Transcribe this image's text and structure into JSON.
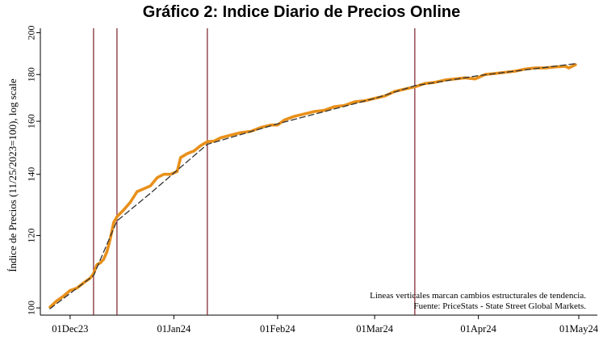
{
  "chart_data": {
    "type": "line",
    "title": "Gráfico 2: Indice Diario de Precios Online",
    "xlabel": "",
    "ylabel": "Índice de Precios (11/25/2023=100), log scale",
    "y_scale": "log",
    "ylim": [
      99,
      201
    ],
    "xlim": [
      "2023-11-25",
      "2024-05-01"
    ],
    "y_ticks": [
      100,
      120,
      140,
      160,
      180,
      200
    ],
    "x_ticks": [
      {
        "date": "2023-12-01",
        "label": "01Dec23"
      },
      {
        "date": "2024-01-01",
        "label": "01Jan24"
      },
      {
        "date": "2024-02-01",
        "label": "01Feb24"
      },
      {
        "date": "2024-03-01",
        "label": "01Mar24"
      },
      {
        "date": "2024-04-01",
        "label": "01Apr24"
      },
      {
        "date": "2024-05-01",
        "label": "01May24"
      }
    ],
    "structural_breaks": [
      "2023-12-08",
      "2023-12-15",
      "2024-01-11",
      "2024-03-13"
    ],
    "series": [
      {
        "style": "solid",
        "color": "#E8901A",
        "points": [
          [
            "2023-11-25",
            100.2
          ],
          [
            "2023-11-27",
            101.8
          ],
          [
            "2023-11-29",
            103.0
          ],
          [
            "2023-12-01",
            104.5
          ],
          [
            "2023-12-03",
            105.1
          ],
          [
            "2023-12-05",
            106.5
          ],
          [
            "2023-12-07",
            107.8
          ],
          [
            "2023-12-08",
            109.0
          ],
          [
            "2023-12-09",
            111.5
          ],
          [
            "2023-12-10",
            112.0
          ],
          [
            "2023-12-11",
            113.0
          ],
          [
            "2023-12-12",
            115.2
          ],
          [
            "2023-12-13",
            119.0
          ],
          [
            "2023-12-14",
            124.0
          ],
          [
            "2023-12-15",
            125.8
          ],
          [
            "2023-12-17",
            128.0
          ],
          [
            "2023-12-19",
            130.5
          ],
          [
            "2023-12-21",
            134.0
          ],
          [
            "2023-12-23",
            135.0
          ],
          [
            "2023-12-25",
            136.0
          ],
          [
            "2023-12-27",
            138.8
          ],
          [
            "2023-12-29",
            140.0
          ],
          [
            "2023-12-31",
            140.0
          ],
          [
            "2024-01-02",
            141.0
          ],
          [
            "2024-01-03",
            146.0
          ],
          [
            "2024-01-05",
            147.5
          ],
          [
            "2024-01-07",
            148.5
          ],
          [
            "2024-01-09",
            150.5
          ],
          [
            "2024-01-11",
            152.0
          ],
          [
            "2024-01-13",
            152.2
          ],
          [
            "2024-01-15",
            153.5
          ],
          [
            "2024-01-18",
            154.5
          ],
          [
            "2024-01-21",
            155.5
          ],
          [
            "2024-01-24",
            156.0
          ],
          [
            "2024-01-27",
            157.5
          ],
          [
            "2024-01-30",
            158.5
          ],
          [
            "2024-02-01",
            158.5
          ],
          [
            "2024-02-03",
            160.5
          ],
          [
            "2024-02-06",
            162.0
          ],
          [
            "2024-02-09",
            163.0
          ],
          [
            "2024-02-12",
            164.0
          ],
          [
            "2024-02-15",
            164.5
          ],
          [
            "2024-02-18",
            166.0
          ],
          [
            "2024-02-21",
            166.5
          ],
          [
            "2024-02-24",
            168.0
          ],
          [
            "2024-02-27",
            168.5
          ],
          [
            "2024-03-01",
            169.5
          ],
          [
            "2024-03-04",
            170.5
          ],
          [
            "2024-03-07",
            172.5
          ],
          [
            "2024-03-10",
            173.5
          ],
          [
            "2024-03-13",
            174.5
          ],
          [
            "2024-03-16",
            176.0
          ],
          [
            "2024-03-19",
            176.5
          ],
          [
            "2024-03-22",
            177.5
          ],
          [
            "2024-03-25",
            178.0
          ],
          [
            "2024-03-28",
            178.5
          ],
          [
            "2024-03-31",
            178.0
          ],
          [
            "2024-04-03",
            180.0
          ],
          [
            "2024-04-06",
            180.5
          ],
          [
            "2024-04-09",
            181.0
          ],
          [
            "2024-04-12",
            181.5
          ],
          [
            "2024-04-15",
            182.5
          ],
          [
            "2024-04-18",
            183.0
          ],
          [
            "2024-04-21",
            183.0
          ],
          [
            "2024-04-24",
            183.5
          ],
          [
            "2024-04-27",
            183.8
          ],
          [
            "2024-04-28",
            183.0
          ],
          [
            "2024-04-30",
            184.5
          ]
        ]
      },
      {
        "style": "dashed",
        "color": "#333333",
        "points": [
          [
            "2023-11-25",
            99.8
          ],
          [
            "2023-12-08",
            108.5
          ],
          [
            "2023-12-15",
            124.5
          ],
          [
            "2023-12-25",
            133.5
          ],
          [
            "2024-01-11",
            151.0
          ],
          [
            "2024-02-01",
            159.0
          ],
          [
            "2024-03-01",
            169.5
          ],
          [
            "2024-03-13",
            175.0
          ],
          [
            "2024-04-01",
            179.5
          ],
          [
            "2024-04-30",
            185.0
          ]
        ]
      }
    ],
    "annotations": [
      "Lineas verticales marcan cambios estructurales de tendencia.",
      "Fuente: PriceStats - State Street Global Markets."
    ],
    "grid": false,
    "legend": "none"
  }
}
